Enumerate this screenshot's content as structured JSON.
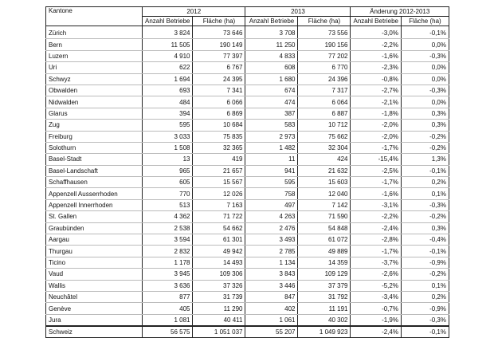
{
  "table": {
    "header": {
      "kanton": "Kantone",
      "groups": [
        "2012",
        "2013",
        "Änderung 2012-2013"
      ],
      "sub": [
        "Anzahl Betriebe",
        "Fläche (ha)",
        "Anzahl Betriebe",
        "Fläche (ha)",
        "Anzahl Betriebe",
        "Fläche (ha)"
      ]
    },
    "rows": [
      [
        "Zürich",
        "3 824",
        "73 646",
        "3 708",
        "73 556",
        "-3,0%",
        "-0,1%"
      ],
      [
        "Bern",
        "11 505",
        "190 149",
        "11 250",
        "190 156",
        "-2,2%",
        "0,0%"
      ],
      [
        "Luzern",
        "4 910",
        "77 397",
        "4 833",
        "77 202",
        "-1,6%",
        "-0,3%"
      ],
      [
        "Uri",
        "622",
        "6 767",
        "608",
        "6 770",
        "-2,3%",
        "0,0%"
      ],
      [
        "Schwyz",
        "1 694",
        "24 395",
        "1 680",
        "24 396",
        "-0,8%",
        "0,0%"
      ],
      [
        "Obwalden",
        "693",
        "7 341",
        "674",
        "7 317",
        "-2,7%",
        "-0,3%"
      ],
      [
        "Nidwalden",
        "484",
        "6 066",
        "474",
        "6 064",
        "-2,1%",
        "0,0%"
      ],
      [
        "Glarus",
        "394",
        "6 869",
        "387",
        "6 887",
        "-1,8%",
        "0,3%"
      ],
      [
        "Zug",
        "595",
        "10 684",
        "583",
        "10 712",
        "-2,0%",
        "0,3%"
      ],
      [
        "Freiburg",
        "3 033",
        "75 835",
        "2 973",
        "75 662",
        "-2,0%",
        "-0,2%"
      ],
      [
        "Solothurn",
        "1 508",
        "32 365",
        "1 482",
        "32 304",
        "-1,7%",
        "-0,2%"
      ],
      [
        "Basel-Stadt",
        "13",
        "419",
        "11",
        "424",
        "-15,4%",
        "1,3%"
      ],
      [
        "Basel-Landschaft",
        "965",
        "21 657",
        "941",
        "21 632",
        "-2,5%",
        "-0,1%"
      ],
      [
        "Schaffhausen",
        "605",
        "15 567",
        "595",
        "15 603",
        "-1,7%",
        "0,2%"
      ],
      [
        "Appenzell Ausserrhoden",
        "770",
        "12 026",
        "758",
        "12 040",
        "-1,6%",
        "0,1%"
      ],
      [
        "Appenzell Innerrhoden",
        "513",
        "7 163",
        "497",
        "7 142",
        "-3,1%",
        "-0,3%"
      ],
      [
        "St. Gallen",
        "4 362",
        "71 722",
        "4 263",
        "71 590",
        "-2,2%",
        "-0,2%"
      ],
      [
        "Graubünden",
        "2 538",
        "54 662",
        "2 476",
        "54 848",
        "-2,4%",
        "0,3%"
      ],
      [
        "Aargau",
        "3 594",
        "61 301",
        "3 493",
        "61 072",
        "-2,8%",
        "-0,4%"
      ],
      [
        "Thurgau",
        "2 832",
        "49 942",
        "2 785",
        "49 889",
        "-1,7%",
        "-0,1%"
      ],
      [
        "Ticino",
        "1 178",
        "14 493",
        "1 134",
        "14 359",
        "-3,7%",
        "-0,9%"
      ],
      [
        "Vaud",
        "3 945",
        "109 306",
        "3 843",
        "109 129",
        "-2,6%",
        "-0,2%"
      ],
      [
        "Wallis",
        "3 636",
        "37 326",
        "3 446",
        "37 379",
        "-5,2%",
        "0,1%"
      ],
      [
        "Neuchâtel",
        "877",
        "31 739",
        "847",
        "31 792",
        "-3,4%",
        "0,2%"
      ],
      [
        "Genève",
        "405",
        "11 290",
        "402",
        "11 191",
        "-0,7%",
        "-0,9%"
      ],
      [
        "Jura",
        "1 081",
        "40 411",
        "1 061",
        "40 302",
        "-1,9%",
        "-0,3%"
      ]
    ],
    "total": [
      "Schweiz",
      "56 575",
      "1 051 037",
      "55 207",
      "1 049 923",
      "-2,4%",
      "-0,1%"
    ]
  }
}
